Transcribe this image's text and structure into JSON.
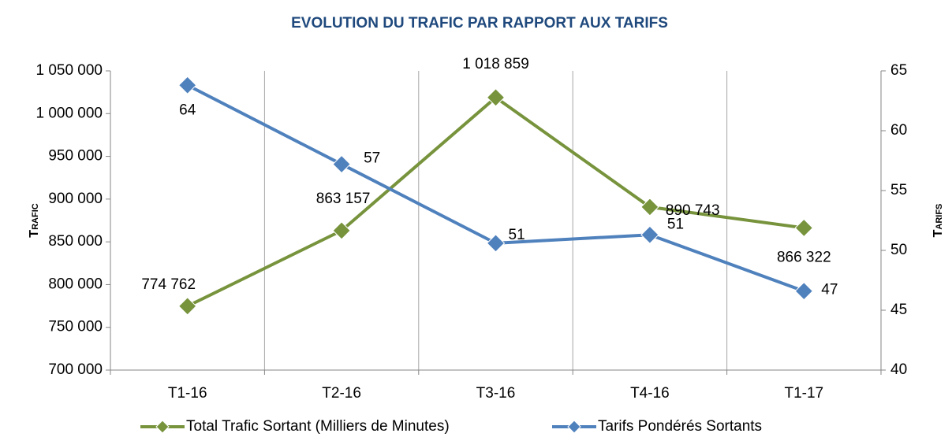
{
  "chart_data": {
    "type": "line",
    "title": "EVOLUTION DU TRAFIC PAR RAPPORT AUX TARIFS",
    "ylabel": "Trafic",
    "y2label": "Tarifs",
    "categories": [
      "T1-16",
      "T2-16",
      "T3-16",
      "T4-16",
      "T1-17"
    ],
    "series": [
      {
        "name": "Total Trafic Sortant (Milliers de Minutes)",
        "color": "#77933c",
        "values": [
          774762,
          863157,
          1018859,
          890743,
          866322
        ],
        "value_labels": [
          "774 762",
          "863 157",
          "1 018 859",
          "890 743",
          "866 322"
        ]
      },
      {
        "name": "Tarifs Pondérés Sortants",
        "color": "#4f81bd",
        "axis": "y2",
        "values": [
          63.8,
          57.2,
          50.6,
          51.3,
          46.6
        ],
        "value_labels": [
          "64",
          "57",
          "51",
          "51",
          "47"
        ]
      }
    ],
    "ylim": [
      700000,
      1050000
    ],
    "yticks": [
      {
        "value": 700000,
        "label": "700 000"
      },
      {
        "value": 750000,
        "label": "750 000"
      },
      {
        "value": 800000,
        "label": "800 000"
      },
      {
        "value": 850000,
        "label": "850 000"
      },
      {
        "value": 900000,
        "label": "900 000"
      },
      {
        "value": 950000,
        "label": "950 000"
      },
      {
        "value": 1000000,
        "label": "1 000 000"
      },
      {
        "value": 1050000,
        "label": "1 050 000"
      }
    ],
    "y2lim": [
      40,
      65
    ],
    "y2ticks": [
      40,
      45,
      50,
      55,
      60,
      65
    ],
    "grid": true
  }
}
